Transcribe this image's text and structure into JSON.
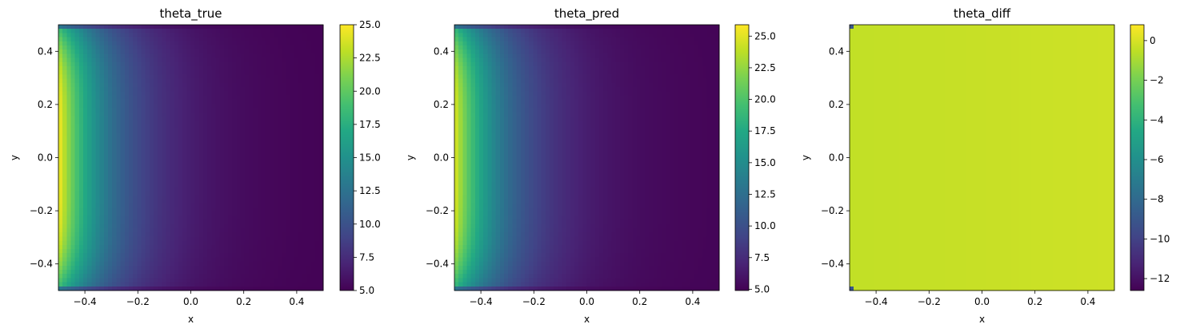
{
  "chart_data": [
    {
      "type": "heatmap",
      "title": "theta_true",
      "xlabel": "x",
      "ylabel": "y",
      "xlim": [
        -0.5,
        0.5
      ],
      "ylim": [
        -0.5,
        0.5
      ],
      "x_ticks": [
        "−0.4",
        "−0.2",
        "0.0",
        "0.2",
        "0.4"
      ],
      "y_ticks": [
        "−0.4",
        "−0.2",
        "0.0",
        "0.2",
        "0.4"
      ],
      "colormap": "viridis",
      "grid": false,
      "colorbar": {
        "min": 5.0,
        "max": 25.0,
        "ticks": [
          "5.0",
          "7.5",
          "10.0",
          "12.5",
          "15.0",
          "17.5",
          "20.0",
          "22.5",
          "25.0"
        ]
      },
      "field": {
        "kind": "heat",
        "left_boundary": 25.0,
        "right_value": 5.0,
        "grid_cells": [
          64,
          64
        ]
      }
    },
    {
      "type": "heatmap",
      "title": "theta_pred",
      "xlabel": "x",
      "ylabel": "y",
      "xlim": [
        -0.5,
        0.5
      ],
      "ylim": [
        -0.5,
        0.5
      ],
      "x_ticks": [
        "−0.4",
        "−0.2",
        "0.0",
        "0.2",
        "0.4"
      ],
      "y_ticks": [
        "−0.4",
        "−0.2",
        "0.0",
        "0.2",
        "0.4"
      ],
      "colormap": "viridis",
      "grid": false,
      "colorbar": {
        "min": 4.9,
        "max": 25.9,
        "ticks": [
          "5.0",
          "7.5",
          "10.0",
          "12.5",
          "15.0",
          "17.5",
          "20.0",
          "22.5",
          "25.0"
        ]
      },
      "field": {
        "kind": "heat",
        "left_boundary": 25.0,
        "right_value": 5.0,
        "grid_cells": [
          64,
          64
        ]
      }
    },
    {
      "type": "heatmap",
      "title": "theta_diff",
      "xlabel": "x",
      "ylabel": "y",
      "xlim": [
        -0.5,
        0.5
      ],
      "ylim": [
        -0.5,
        0.5
      ],
      "x_ticks": [
        "−0.4",
        "−0.2",
        "0.0",
        "0.2",
        "0.4"
      ],
      "y_ticks": [
        "−0.4",
        "−0.2",
        "0.0",
        "0.2",
        "0.4"
      ],
      "colormap": "viridis",
      "grid": false,
      "colorbar": {
        "min": -12.6,
        "max": 0.8,
        "ticks": [
          "−12",
          "−10",
          "−8",
          "−6",
          "−4",
          "−2",
          "0"
        ]
      },
      "field": {
        "kind": "diff",
        "base_value": -0.3,
        "corner_value": -9.0,
        "grid_cells": [
          64,
          64
        ]
      }
    }
  ]
}
